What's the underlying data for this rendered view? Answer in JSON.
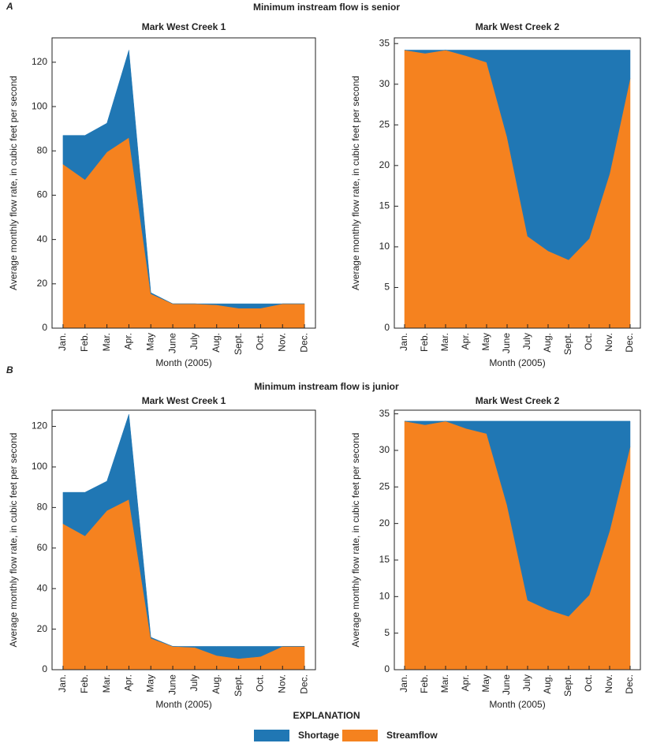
{
  "sections": [
    {
      "letter": "A",
      "title": "Minimum instream flow is senior"
    },
    {
      "letter": "B",
      "title": "Minimum instream flow is junior"
    }
  ],
  "legend_title": "EXPLANATION",
  "chart_data": [
    {
      "type": "area",
      "stacked": true,
      "title": "Mark West Creek 1",
      "x_label": "Month (2005)",
      "y_label": "Average monthly flow rate, in cubic feet per second",
      "categories": [
        "Jan.",
        "Feb.",
        "Mar.",
        "Apr.",
        "May",
        "June",
        "July",
        "Aug.",
        "Sept.",
        "Oct.",
        "Nov.",
        "Dec."
      ],
      "series": [
        {
          "name": "Streamflow",
          "color": "#f5821f",
          "values": [
            74,
            67,
            79.5,
            86,
            15.5,
            11,
            11,
            10.5,
            9,
            9,
            11,
            11
          ]
        },
        {
          "name": "Shortage",
          "color": "#2077b4",
          "values": [
            13,
            20,
            13,
            39.5,
            0.5,
            0,
            0,
            0.5,
            2,
            2,
            0,
            0
          ]
        }
      ],
      "ylim": [
        0,
        131
      ],
      "yticks": [
        0,
        20,
        40,
        60,
        80,
        100,
        120
      ]
    },
    {
      "type": "area",
      "stacked": true,
      "title": "Mark West Creek 2",
      "x_label": "Month (2005)",
      "y_label": "Average monthly flow rate, in cubic feet per second",
      "categories": [
        "Jan.",
        "Feb.",
        "Mar.",
        "Apr.",
        "May",
        "June",
        "July",
        "Aug.",
        "Sept.",
        "Oct.",
        "Nov.",
        "Dec."
      ],
      "series": [
        {
          "name": "Streamflow",
          "color": "#f5821f",
          "values": [
            34.2,
            33.8,
            34.2,
            33.5,
            32.7,
            23.5,
            11.3,
            9.5,
            8.4,
            11,
            19,
            30.7
          ]
        },
        {
          "name": "Shortage",
          "color": "#2077b4",
          "values": [
            0,
            0.4,
            0,
            0.7,
            1.5,
            10.7,
            22.9,
            24.7,
            25.8,
            23.2,
            15.2,
            3.5
          ]
        }
      ],
      "ylim": [
        0,
        35.7
      ],
      "yticks": [
        0,
        5,
        10,
        15,
        20,
        25,
        30,
        35
      ]
    },
    {
      "type": "area",
      "stacked": true,
      "title": "Mark West Creek 1",
      "x_label": "Month (2005)",
      "y_label": "Average monthly flow rate, in cubic feet per second",
      "categories": [
        "Jan.",
        "Feb.",
        "Mar.",
        "Apr.",
        "May",
        "June",
        "July",
        "Aug.",
        "Sept.",
        "Oct.",
        "Nov.",
        "Dec."
      ],
      "series": [
        {
          "name": "Streamflow",
          "color": "#f5821f",
          "values": [
            72,
            66,
            78.5,
            84,
            15.5,
            11.5,
            11,
            7,
            5.5,
            6.5,
            11.5,
            11.5
          ]
        },
        {
          "name": "Shortage",
          "color": "#2077b4",
          "values": [
            15.5,
            21.5,
            14.5,
            42,
            0.5,
            0,
            0.5,
            4.5,
            6,
            5,
            0,
            0
          ]
        }
      ],
      "ylim": [
        0,
        128
      ],
      "yticks": [
        0,
        20,
        40,
        60,
        80,
        100,
        120
      ]
    },
    {
      "type": "area",
      "stacked": true,
      "title": "Mark West Creek 2",
      "x_label": "Month (2005)",
      "y_label": "Average monthly flow rate, in cubic feet per second",
      "categories": [
        "Jan.",
        "Feb.",
        "Mar.",
        "Apr.",
        "May",
        "June",
        "July",
        "Aug.",
        "Sept.",
        "Oct.",
        "Nov.",
        "Dec."
      ],
      "series": [
        {
          "name": "Streamflow",
          "color": "#f5821f",
          "values": [
            34,
            33.5,
            34,
            33,
            32.3,
            22.5,
            9.5,
            8.2,
            7.3,
            10.2,
            19,
            30.5
          ]
        },
        {
          "name": "Shortage",
          "color": "#2077b4",
          "values": [
            0,
            0.5,
            0,
            1,
            1.7,
            11.5,
            24.5,
            25.8,
            26.7,
            23.8,
            15,
            3.5
          ]
        }
      ],
      "ylim": [
        0,
        35.5
      ],
      "yticks": [
        0,
        5,
        10,
        15,
        20,
        25,
        30,
        35
      ]
    }
  ]
}
